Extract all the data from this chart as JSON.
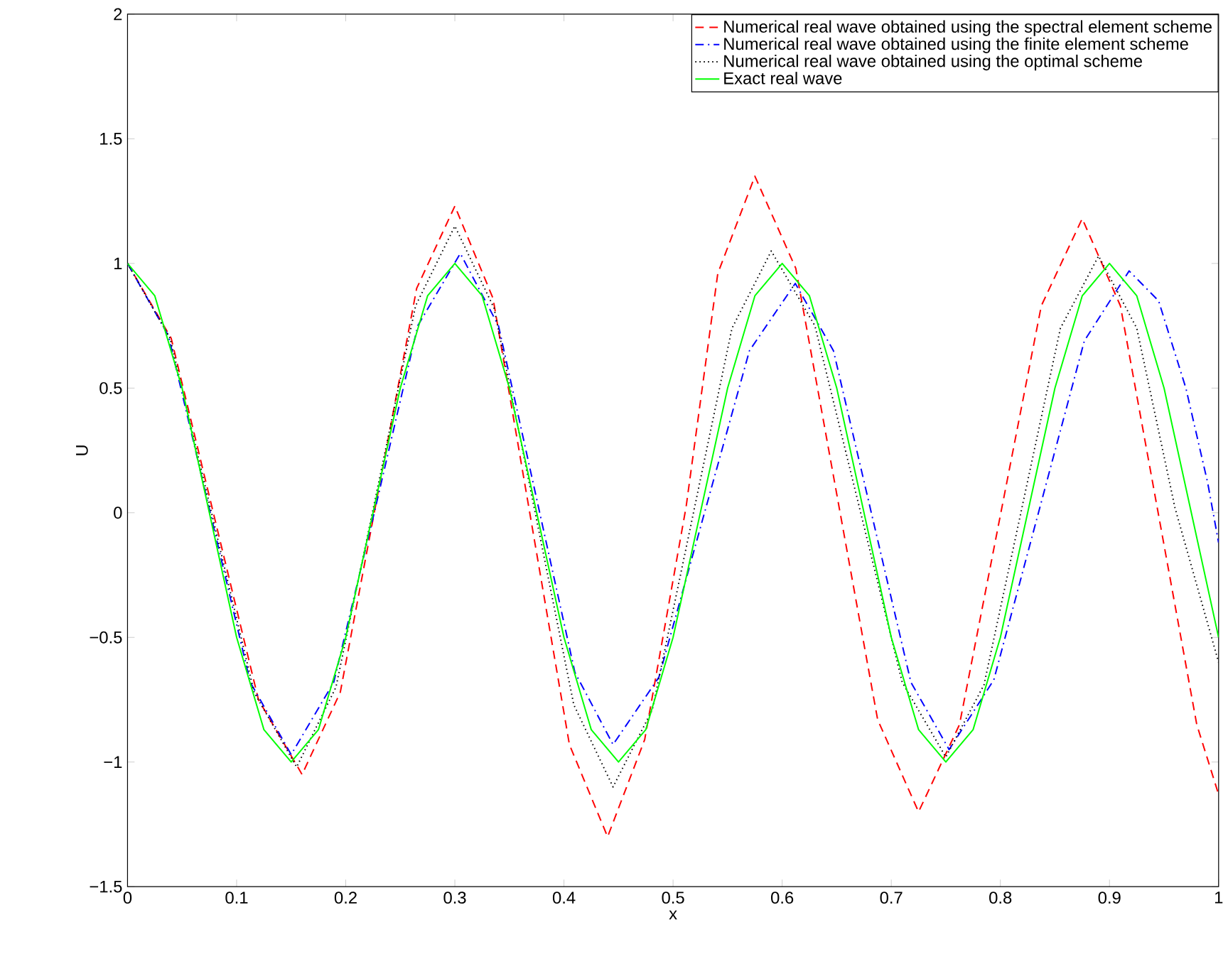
{
  "chart_data": {
    "type": "line",
    "xlabel": "x",
    "ylabel": "U",
    "xlim": [
      0,
      1
    ],
    "ylim": [
      -1.5,
      2
    ],
    "xticks": [
      0,
      0.1,
      0.2,
      0.3,
      0.4,
      0.5,
      0.6,
      0.7,
      0.8,
      0.9,
      1
    ],
    "yticks": [
      {
        "value": -1.5,
        "label": "−1.5"
      },
      {
        "value": -1,
        "label": "−1"
      },
      {
        "value": -0.5,
        "label": "−0.5"
      },
      0,
      0.5,
      1,
      1.5,
      2
    ],
    "grid": false,
    "legend": "top right",
    "marker": "none",
    "series": [
      {
        "name": "Numerical real wave obtained using the spectral element scheme",
        "color": "#ff0000",
        "line_style": "dashed",
        "x": [
          0,
          0.04,
          0.08,
          0.12,
          0.16,
          0.195,
          0.23,
          0.265,
          0.3,
          0.335,
          0.37,
          0.405,
          0.44,
          0.474,
          0.512,
          0.541,
          0.575,
          0.6125,
          0.65,
          0.6875,
          0.725,
          0.7625,
          0.8,
          0.8375,
          0.875,
          0.91,
          0.945,
          0.98,
          1
        ],
        "values": [
          1,
          0.7,
          -0.025,
          -0.75,
          -1.05,
          -0.72,
          0.09,
          0.9,
          1.23,
          0.86,
          -0.035,
          -0.93,
          -1.3,
          -0.91,
          0.025,
          0.96,
          1.35,
          0.98,
          0.075,
          -0.83,
          -1.2,
          -0.85,
          -0.01,
          0.83,
          1.18,
          0.83,
          -0.01,
          -0.85,
          -1.13
        ]
      },
      {
        "name": "Numerical real wave obtained using the finite element scheme",
        "color": "#0000ff",
        "line_style": "dashdot",
        "x": [
          0,
          0.0375,
          0.075,
          0.1125,
          0.15,
          0.189,
          0.228,
          0.266,
          0.305,
          0.34,
          0.375,
          0.41,
          0.445,
          0.487,
          0.5285,
          0.57,
          0.612,
          0.647,
          0.6825,
          0.718,
          0.753,
          0.794,
          0.8355,
          0.877,
          0.918,
          0.945,
          0.97,
          0.99,
          1
        ],
        "values": [
          1,
          0.71,
          0.015,
          -0.68,
          -0.97,
          -0.68,
          0.035,
          0.75,
          1.04,
          0.75,
          0.055,
          -0.64,
          -0.93,
          -0.66,
          -0.005,
          0.65,
          0.92,
          0.65,
          -0.015,
          -0.68,
          -0.95,
          -0.67,
          0.01,
          0.69,
          0.97,
          0.85,
          0.5,
          0.12,
          -0.12
        ]
      },
      {
        "name": "Numerical real wave obtained using the optimal scheme",
        "color": "#000000",
        "line_style": "dotted",
        "x": [
          0,
          0.039,
          0.0775,
          0.116,
          0.155,
          0.191,
          0.2275,
          0.264,
          0.3,
          0.336,
          0.3725,
          0.409,
          0.445,
          0.481,
          0.5175,
          0.554,
          0.59,
          0.63,
          0.67,
          0.71,
          0.75,
          0.785,
          0.82,
          0.855,
          0.89,
          0.925,
          0.96,
          1
        ],
        "values": [
          1,
          0.7,
          -0.01,
          -0.72,
          -1.02,
          -0.7,
          0.065,
          0.83,
          1.15,
          0.82,
          0.025,
          -0.77,
          -1.1,
          -0.79,
          -0.025,
          0.74,
          1.05,
          0.75,
          0.035,
          -0.68,
          -0.98,
          -0.69,
          0.025,
          0.74,
          1.03,
          0.74,
          0.02,
          -0.6
        ]
      },
      {
        "name": "Exact real wave",
        "color": "#00ff00",
        "line_style": "solid",
        "x": [
          0,
          0.025,
          0.05,
          0.075,
          0.1,
          0.125,
          0.15,
          0.175,
          0.2,
          0.225,
          0.25,
          0.275,
          0.3,
          0.325,
          0.35,
          0.375,
          0.4,
          0.425,
          0.45,
          0.475,
          0.5,
          0.525,
          0.55,
          0.575,
          0.6,
          0.625,
          0.65,
          0.675,
          0.7,
          0.725,
          0.75,
          0.775,
          0.8,
          0.825,
          0.85,
          0.875,
          0.9,
          0.925,
          0.95,
          0.975,
          1
        ],
        "values": [
          1,
          0.87,
          0.5,
          0,
          -0.5,
          -0.87,
          -1,
          -0.87,
          -0.5,
          0,
          0.5,
          0.87,
          1,
          0.87,
          0.5,
          0,
          -0.5,
          -0.87,
          -1,
          -0.87,
          -0.5,
          0,
          0.5,
          0.87,
          1,
          0.87,
          0.5,
          0,
          -0.5,
          -0.87,
          -1,
          -0.87,
          -0.5,
          0,
          0.5,
          0.87,
          1,
          0.87,
          0.5,
          0,
          -0.5
        ]
      }
    ]
  }
}
